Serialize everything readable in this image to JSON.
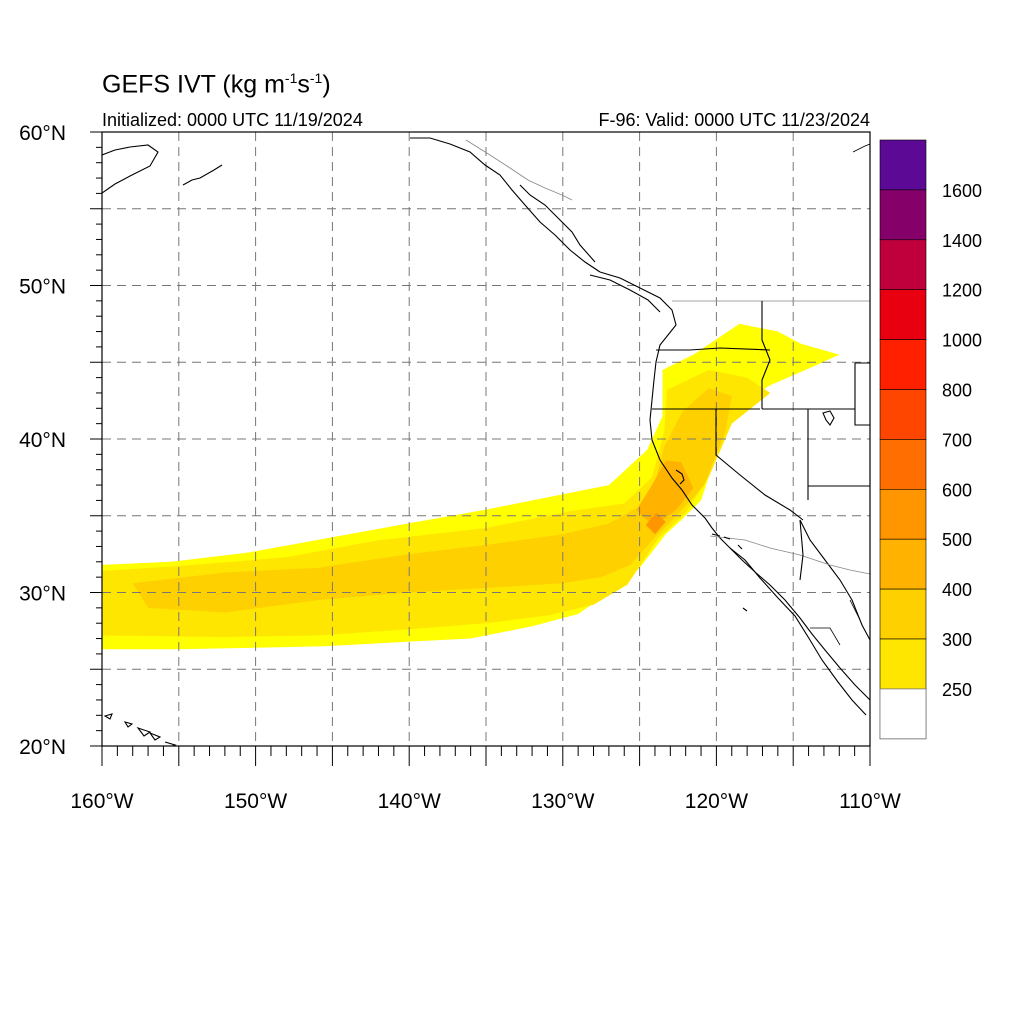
{
  "title": {
    "main": "GEFS IVT (kg m",
    "unit_exp_1": "-1",
    "unit_mid": "s",
    "unit_exp_2": "-1",
    "unit_close": ")"
  },
  "subtitle": {
    "initialized": "Initialized: 0000 UTC 11/19/2024",
    "valid": "F-96: Valid: 0000 UTC 11/23/2024"
  },
  "map": {
    "lon_range": [
      -160,
      -110
    ],
    "lat_range": [
      20,
      60
    ],
    "grid": true,
    "grid_style": "dashed",
    "lon_ticks": [
      {
        "value": -160,
        "label": "160°W"
      },
      {
        "value": -150,
        "label": "150°W"
      },
      {
        "value": -140,
        "label": "140°W"
      },
      {
        "value": -130,
        "label": "130°W"
      },
      {
        "value": -120,
        "label": "120°W"
      },
      {
        "value": -110,
        "label": "110°W"
      }
    ],
    "lat_ticks": [
      {
        "value": 20,
        "label": "20°N"
      },
      {
        "value": 30,
        "label": "30°N"
      },
      {
        "value": 40,
        "label": "40°N"
      },
      {
        "value": 50,
        "label": "50°N"
      },
      {
        "value": 60,
        "label": "60°N"
      }
    ]
  },
  "colorbar": {
    "levels": [
      {
        "label": "250",
        "color": "#ffff00"
      },
      {
        "label": "300",
        "color": "#ffe600"
      },
      {
        "label": "400",
        "color": "#ffd000"
      },
      {
        "label": "500",
        "color": "#ffb300"
      },
      {
        "label": "600",
        "color": "#ff9600"
      },
      {
        "label": "700",
        "color": "#ff6e00"
      },
      {
        "label": "800",
        "color": "#ff4600"
      },
      {
        "label": "1000",
        "color": "#ff2000"
      },
      {
        "label": "1200",
        "color": "#e80010"
      },
      {
        "label": "1400",
        "color": "#c0003c"
      },
      {
        "label": "1600",
        "color": "#86006a"
      }
    ],
    "below_color": "#ffffff",
    "top_color": "#5c0a96"
  },
  "chart_data": {
    "type": "heatmap",
    "variable": "IVT",
    "units": "kg m-1 s-1",
    "x_range": [
      -160,
      -110
    ],
    "y_range": [
      20,
      60
    ],
    "thresholds": [
      250,
      300,
      400,
      500,
      600,
      700,
      800,
      1000,
      1200,
      1400,
      1600
    ],
    "regions": [
      {
        "threshold": 250,
        "polygon": [
          [
            -160,
            31.8
          ],
          [
            -155.5,
            32
          ],
          [
            -150.5,
            32.6
          ],
          [
            -145,
            33.6
          ],
          [
            -139.5,
            34.6
          ],
          [
            -135,
            35.4
          ],
          [
            -129.5,
            36.5
          ],
          [
            -127,
            37
          ],
          [
            -124.5,
            39.3
          ],
          [
            -123.5,
            41.5
          ],
          [
            -123.5,
            44.5
          ],
          [
            -121.5,
            45.5
          ],
          [
            -118.5,
            47.5
          ],
          [
            -116,
            47
          ],
          [
            -114.5,
            46.2
          ],
          [
            -112,
            45.5
          ],
          [
            -113.5,
            44.8
          ],
          [
            -116.5,
            43.5
          ],
          [
            -119,
            42
          ],
          [
            -120,
            39
          ],
          [
            -121,
            36
          ],
          [
            -122.2,
            34.8
          ],
          [
            -123.3,
            33.8
          ],
          [
            -125,
            31.6
          ],
          [
            -127,
            30
          ],
          [
            -129,
            28.6
          ],
          [
            -132,
            27.8
          ],
          [
            -136,
            27
          ],
          [
            -140,
            26.8
          ],
          [
            -145.5,
            26.5
          ],
          [
            -150,
            26.4
          ],
          [
            -155,
            26.3
          ],
          [
            -160,
            26.3
          ]
        ]
      },
      {
        "threshold": 300,
        "polygon": [
          [
            -160,
            31.4
          ],
          [
            -154,
            31.8
          ],
          [
            -148,
            32.3
          ],
          [
            -142,
            33.4
          ],
          [
            -135,
            34.2
          ],
          [
            -129.5,
            35.3
          ],
          [
            -126,
            35.8
          ],
          [
            -124.2,
            37.5
          ],
          [
            -123.4,
            40.5
          ],
          [
            -123.2,
            43.2
          ],
          [
            -120.5,
            44.5
          ],
          [
            -118,
            44
          ],
          [
            -116.5,
            43
          ],
          [
            -119,
            41
          ],
          [
            -120.5,
            37.5
          ],
          [
            -122,
            35.2
          ],
          [
            -123.8,
            33.5
          ],
          [
            -125.8,
            30.5
          ],
          [
            -128,
            29.2
          ],
          [
            -131,
            28.5
          ],
          [
            -135,
            28
          ],
          [
            -140,
            27.6
          ],
          [
            -146,
            27.2
          ],
          [
            -152,
            27.1
          ],
          [
            -160,
            27.2
          ]
        ]
      },
      {
        "threshold": 400,
        "polygon": [
          [
            -158,
            30.6
          ],
          [
            -152,
            31.3
          ],
          [
            -146,
            31.6
          ],
          [
            -140,
            32.5
          ],
          [
            -135,
            33.1
          ],
          [
            -130,
            33.8
          ],
          [
            -127,
            34.5
          ],
          [
            -125,
            35.6
          ],
          [
            -124,
            37.2
          ],
          [
            -123.4,
            39.5
          ],
          [
            -122.2,
            41.8
          ],
          [
            -120.5,
            43.3
          ],
          [
            -119,
            42.8
          ],
          [
            -119.4,
            40.5
          ],
          [
            -120.8,
            37
          ],
          [
            -122.4,
            35.2
          ],
          [
            -124,
            33.6
          ],
          [
            -125.6,
            31.8
          ],
          [
            -127.5,
            31
          ],
          [
            -130,
            30.6
          ],
          [
            -135,
            30.3
          ],
          [
            -140,
            30
          ],
          [
            -146,
            29.5
          ],
          [
            -152,
            28.7
          ],
          [
            -157,
            29
          ]
        ]
      },
      {
        "threshold": 500,
        "polygon": [
          [
            -125.2,
            35.4
          ],
          [
            -124.2,
            37
          ],
          [
            -123.3,
            38.6
          ],
          [
            -122.3,
            38.5
          ],
          [
            -121.5,
            36.8
          ],
          [
            -122.6,
            35.4
          ],
          [
            -124.1,
            34.3
          ]
        ]
      },
      {
        "threshold": 600,
        "polygon": [
          [
            -124.6,
            34.4
          ],
          [
            -123.9,
            35.2
          ],
          [
            -123.3,
            34.6
          ],
          [
            -124,
            33.8
          ]
        ]
      }
    ],
    "boundaries": [
      "coastlines",
      "national borders",
      "US state borders",
      "Mexican state borders"
    ]
  }
}
